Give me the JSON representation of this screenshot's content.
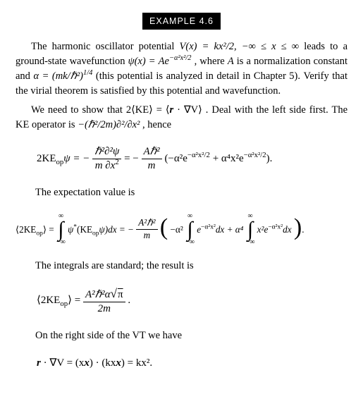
{
  "header": {
    "label": "EXAMPLE 4.6"
  },
  "p1": {
    "t1": "The harmonic oscillator potential ",
    "m1": "V(x) = kx²/2, −∞ ≤ x ≤ ∞",
    "t2": " leads to a ground-state wavefunction ",
    "m2_a": "ψ(x) = Ae",
    "m2_exp": "−α²x²/2",
    "t3": ", where ",
    "m3": "A",
    "t4": " is a normalization constant and ",
    "m4": "α = (mk/ℏ²)",
    "m4_exp": "1/4",
    "t5": " (this potential is analyzed in detail in Chapter 5). Verify that the virial theorem is satisfied by this potential and wavefunction."
  },
  "p2": {
    "t1": "We need to show that ",
    "m1a": "2⟨KE⟩ = ⟨",
    "m1b": "r",
    "m1c": " · ∇V⟩",
    "t2": ". Deal with the left side first. The KE operator is ",
    "m2": "−(ℏ²/2m)∂²/∂x²",
    "t3": ", hence"
  },
  "eq1": {
    "lhs": "2KE",
    "lhs_sub": "op",
    "lhs_psi": "ψ = −",
    "f1_num": "ℏ²∂²ψ",
    "f1_den_a": "m ∂x",
    "f1_den_exp": "2",
    "eq": " = −",
    "f2_num": "Aℏ²",
    "f2_den": "m",
    "tail_a": "(−α²e",
    "tail_e1": "−α²x²/2",
    "tail_b": " + α⁴x²e",
    "tail_e2": "−α²x²/2",
    "tail_c": ")."
  },
  "p3": {
    "t1": "The expectation value is"
  },
  "eq2": {
    "lhs_open": "⟨2KE",
    "lhs_sub": "op",
    "lhs_close": "⟩ = ",
    "int_top": "∞",
    "int_bot": "−∞",
    "i1_body_a": "ψ",
    "i1_star": "*",
    "i1_body_b": "(KE",
    "i1_sub": "op",
    "i1_body_c": "ψ)dx = −",
    "f_num": "A²ℏ²",
    "f_den": "m",
    "mid_a": "−α² ",
    "ibody2_a": "e",
    "ie2": "−α²x²",
    "ibody2_b": "dx + α⁴ ",
    "ibody3_a": "x²e",
    "ie3": "−α²x²",
    "ibody3_b": "dx",
    "dot": "."
  },
  "p4": {
    "t1": "The integrals are standard; the result is"
  },
  "eq3": {
    "lhs_open": "⟨2KE",
    "lhs_sub": "op",
    "lhs_close": "⟩ = ",
    "num_a": "A²ℏ²α",
    "num_rad": "π",
    "den": "2m",
    "dot": "."
  },
  "p5": {
    "t1": "On the right side of the VT we have"
  },
  "eq4": {
    "a": "r",
    "b": " · ∇V = (x",
    "c": "x",
    "d": ") · (kx",
    "e": "x",
    "f": ") = kx²."
  }
}
